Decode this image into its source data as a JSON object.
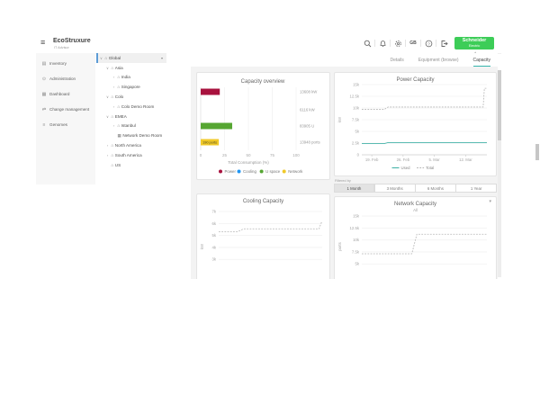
{
  "header": {
    "product": "EcoStruxure",
    "product_sub": "IT Advisor",
    "language": "GB",
    "brand_line1": "Schneider",
    "brand_line2": "Electric",
    "brand_color": "#3dcd58"
  },
  "sidebar": {
    "items": [
      {
        "label": "Inventory",
        "icon": "inventory-icon"
      },
      {
        "label": "Administration",
        "icon": "administration-icon"
      },
      {
        "label": "Dashboard",
        "icon": "dashboard-icon"
      },
      {
        "label": "Change management",
        "icon": "change-management-icon"
      },
      {
        "label": "Genomes",
        "icon": "genomes-icon"
      }
    ]
  },
  "location_tree": {
    "items": [
      {
        "label": "Global",
        "level": 0,
        "state": "expanded",
        "icon": "location-icon",
        "selected": true
      },
      {
        "label": "Asia",
        "level": 1,
        "state": "expanded",
        "icon": "location-icon",
        "selected": false
      },
      {
        "label": "India",
        "level": 2,
        "state": "collapsed",
        "icon": "location-icon",
        "selected": false
      },
      {
        "label": "Singapore",
        "level": 2,
        "state": "collapsed",
        "icon": "location-icon",
        "selected": false
      },
      {
        "label": "Colo",
        "level": 1,
        "state": "expanded",
        "icon": "location-icon",
        "selected": false
      },
      {
        "label": "Colo Demo Room",
        "level": 2,
        "state": "collapsed",
        "icon": "location-icon",
        "selected": false
      },
      {
        "label": "EMEA",
        "level": 1,
        "state": "expanded",
        "icon": "location-icon",
        "selected": false
      },
      {
        "label": "Istanbul",
        "level": 2,
        "state": "collapsed",
        "icon": "location-icon",
        "selected": false
      },
      {
        "label": "Network Demo Room",
        "level": 2,
        "state": "leaf",
        "icon": "room-icon",
        "selected": false
      },
      {
        "label": "North America",
        "level": 1,
        "state": "collapsed",
        "icon": "location-icon",
        "selected": false
      },
      {
        "label": "South America",
        "level": 1,
        "state": "collapsed",
        "icon": "location-icon",
        "selected": false
      },
      {
        "label": "US",
        "level": 1,
        "state": "leaf",
        "icon": "location-icon",
        "selected": false
      }
    ]
  },
  "tabs": [
    {
      "label": "Details",
      "active": false
    },
    {
      "label": "Equipment (browse)",
      "active": false
    },
    {
      "label": "Capacity",
      "active": true
    }
  ],
  "filter": {
    "label": "Filtered by",
    "options": [
      "1 Month",
      "3 Months",
      "6 Months",
      "1 Year"
    ],
    "active": "1 Month"
  },
  "chart_data": [
    {
      "id": "capacity-overview",
      "type": "bar",
      "orientation": "horizontal",
      "title": "Capacity overview",
      "xlabel": "Total Consumption (%)",
      "xlim": [
        0,
        100
      ],
      "xticks": [
        0,
        25,
        50,
        75,
        100
      ],
      "categories": [
        "Power",
        "Cooling",
        "U space",
        "Network"
      ],
      "values": [
        20,
        0,
        33,
        19
      ],
      "value_labels": [
        "13608 kW",
        "6116 kW",
        "83905 U",
        "13948 ports"
      ],
      "bar_inner_label": {
        "index": 3,
        "text": "190 ports"
      },
      "colors": [
        "#a8123e",
        "#2196f3",
        "#56a632",
        "#f0c929"
      ],
      "legend": [
        "Power",
        "Cooling",
        "U space",
        "Network"
      ]
    },
    {
      "id": "power-capacity",
      "type": "line",
      "title": "Power Capacity",
      "ylabel": "kW",
      "ylim": [
        0,
        15000
      ],
      "yticks": [
        "15k",
        "12.5k",
        "10k",
        "7.5k",
        "5k",
        "2.5k",
        "0"
      ],
      "ytick_values": [
        15000,
        12500,
        10000,
        7500,
        5000,
        2500,
        0
      ],
      "xticks": [
        "19. Feb",
        "26. Feb",
        "5. Mar",
        "12. Mar"
      ],
      "xtick_pos": [
        8,
        33,
        58,
        83
      ],
      "legend": [
        {
          "name": "Used",
          "style": "solid"
        },
        {
          "name": "Total",
          "style": "dashed"
        }
      ],
      "series": [
        {
          "name": "Used",
          "style": "solid",
          "color": "#26a69a",
          "points": [
            [
              0,
              2400
            ],
            [
              18,
              2400
            ],
            [
              21,
              2600
            ],
            [
              100,
              2600
            ]
          ]
        },
        {
          "name": "Total",
          "style": "dashed",
          "color": "#b4b4b4",
          "points": [
            [
              0,
              9700
            ],
            [
              18,
              9700
            ],
            [
              21,
              10200
            ],
            [
              97,
              10200
            ],
            [
              98,
              14200
            ],
            [
              100,
              14200
            ]
          ]
        }
      ]
    },
    {
      "id": "cooling-capacity",
      "type": "line",
      "title": "Cooling Capacity",
      "ylabel": "kW",
      "ylim": [
        2000,
        7000
      ],
      "yticks": [
        "7k",
        "6k",
        "5k",
        "4k",
        "3k"
      ],
      "ytick_values": [
        7000,
        6000,
        5000,
        4000,
        3000
      ],
      "series": [
        {
          "name": "Total",
          "style": "dashed",
          "color": "#b4b4b4",
          "points": [
            [
              0,
              5300
            ],
            [
              18,
              5300
            ],
            [
              24,
              5550
            ],
            [
              97,
              5550
            ],
            [
              99,
              6050
            ],
            [
              100,
              6050
            ]
          ]
        }
      ]
    },
    {
      "id": "network-capacity",
      "type": "line",
      "title": "Network Capacity",
      "subtitle": "All",
      "ylabel": "ports",
      "ylim": [
        5000,
        16000
      ],
      "yticks": [
        "15k",
        "12.5k",
        "10k",
        "7.5k",
        "5k"
      ],
      "ytick_values": [
        15000,
        12500,
        10000,
        7500,
        5000
      ],
      "series": [
        {
          "name": "Total",
          "style": "dashed",
          "color": "#b4b4b4",
          "points": [
            [
              0,
              7100
            ],
            [
              40,
              7100
            ],
            [
              44,
              11200
            ],
            [
              100,
              11200
            ]
          ]
        }
      ]
    }
  ]
}
